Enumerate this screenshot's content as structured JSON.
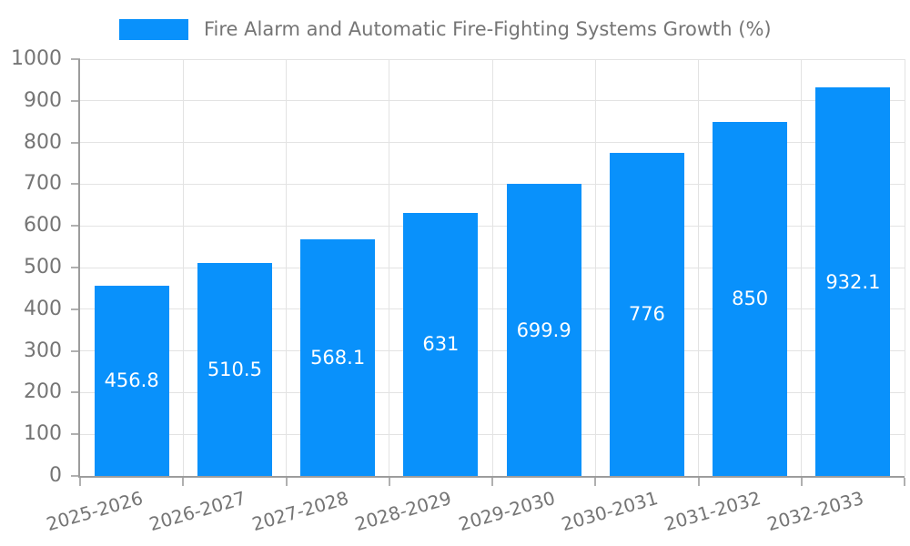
{
  "page": {
    "background": "#ffffff"
  },
  "legend": {
    "position": "top",
    "swatch_color": "#0991fb"
  },
  "chart_data": {
    "type": "bar",
    "title": "Fire Alarm and Automatic Fire-Fighting Systems Growth (%)",
    "categories": [
      "2025-2026",
      "2026-2027",
      "2027-2028",
      "2028-2029",
      "2029-2030",
      "2030-2031",
      "2031-2032",
      "2032-2033"
    ],
    "values": [
      456.8,
      510.5,
      568.1,
      631,
      699.9,
      776,
      850,
      932.1
    ],
    "value_labels": [
      "456.8",
      "510.5",
      "568.1",
      "631",
      "699.9",
      "776",
      "850",
      "932.1"
    ],
    "xlabel": "",
    "ylabel": "",
    "ylim": [
      0,
      1000
    ],
    "yticks": [
      0,
      100,
      200,
      300,
      400,
      500,
      600,
      700,
      800,
      900,
      1000
    ],
    "grid": true,
    "legend_position": "top",
    "bar_color": "#0991fb",
    "value_label_color": "#ffffff",
    "axis_text_color": "#757575",
    "gridline_color": "#e3e3e3",
    "axis_line_color": "#9c9c9c",
    "tick_color": "#b0b0b0",
    "xtick_rotation_deg": -16
  }
}
